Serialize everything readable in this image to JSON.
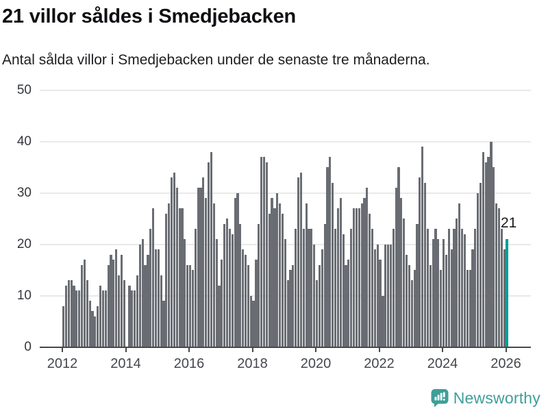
{
  "title": "21 villor såldes i Smedjebacken",
  "subtitle": "Antal sålda villor i Smedjebacken under de senaste tre månaderna.",
  "annotation": {
    "label": "21"
  },
  "branding": {
    "name": "Newsworthy",
    "icon": "newsworthy-speech-bubble-chart-icon"
  },
  "colors": {
    "bar": "#696d73",
    "highlight": "#00a096",
    "grid": "#e9e9e9",
    "axis": "#474747",
    "brand_teal": "#3f9e98",
    "text": "#17191d"
  },
  "chart_data": {
    "type": "bar",
    "title": "21 villor såldes i Smedjebacken",
    "subtitle": "Antal sålda villor i Smedjebacken under de senaste tre månaderna.",
    "xlabel": "",
    "ylabel": "",
    "x_unit": "month",
    "x_range": [
      "2012-01",
      "2026-01"
    ],
    "ylim": [
      0,
      50
    ],
    "ytick_labels": [
      "0",
      "10",
      "20",
      "30",
      "40",
      "50"
    ],
    "xtick_labels": [
      "2012",
      "2014",
      "2016",
      "2018",
      "2020",
      "2022",
      "2024",
      "2026"
    ],
    "grid": "horizontal-only",
    "legend": "none",
    "missing_months": [
      "2014-01"
    ],
    "highlight": {
      "position": "last",
      "value": 21,
      "annotation": "21"
    },
    "values_by_year": {
      "2012": [
        8,
        12,
        13,
        13,
        12,
        11,
        11,
        16,
        17,
        13,
        9,
        7
      ],
      "2013": [
        6,
        8,
        12,
        11,
        11,
        16,
        18,
        17,
        19,
        14,
        18,
        13
      ],
      "2014": [
        null,
        12,
        11,
        11,
        14,
        20,
        21,
        16,
        18,
        23,
        27,
        19
      ],
      "2015": [
        19,
        14,
        9,
        26,
        28,
        33,
        34,
        31,
        27,
        27,
        21,
        16
      ],
      "2016": [
        16,
        15,
        23,
        31,
        31,
        33,
        29,
        36,
        38,
        28,
        21,
        12
      ],
      "2017": [
        17,
        24,
        25,
        23,
        22,
        29,
        30,
        24,
        19,
        18,
        16,
        10
      ],
      "2018": [
        9,
        17,
        24,
        37,
        37,
        36,
        26,
        29,
        27,
        30,
        28,
        26
      ],
      "2019": [
        21,
        13,
        15,
        16,
        23,
        33,
        34,
        23,
        28,
        23,
        23,
        20
      ],
      "2020": [
        13,
        16,
        19,
        24,
        35,
        37,
        32,
        23,
        27,
        29,
        22,
        16
      ],
      "2021": [
        17,
        23,
        27,
        27,
        27,
        28,
        29,
        31,
        26,
        23,
        19,
        20
      ],
      "2022": [
        17,
        10,
        20,
        20,
        20,
        23,
        31,
        35,
        29,
        25,
        18,
        16
      ],
      "2023": [
        13,
        15,
        24,
        33,
        39,
        32,
        23,
        16,
        21,
        23,
        21,
        15
      ],
      "2024": [
        21,
        18,
        23,
        19,
        23,
        25,
        28,
        23,
        22,
        15,
        15,
        19
      ],
      "2025": [
        23,
        30,
        32,
        38,
        36,
        37,
        40,
        35,
        28,
        27,
        23,
        19
      ],
      "2026": [
        21
      ]
    }
  }
}
